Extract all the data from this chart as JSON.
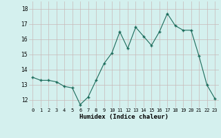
{
  "x": [
    0,
    1,
    2,
    3,
    4,
    5,
    6,
    7,
    8,
    9,
    10,
    11,
    12,
    13,
    14,
    15,
    16,
    17,
    18,
    19,
    20,
    21,
    22,
    23
  ],
  "y": [
    13.5,
    13.3,
    13.3,
    13.2,
    12.9,
    12.8,
    11.7,
    12.2,
    13.3,
    14.4,
    15.1,
    16.5,
    15.4,
    16.8,
    16.2,
    15.6,
    16.5,
    17.7,
    16.9,
    16.6,
    16.6,
    14.9,
    13.0,
    12.1
  ],
  "xlabel": "Humidex (Indice chaleur)",
  "line_color": "#1a6b5a",
  "marker": "+",
  "bg_color": "#d4f0ee",
  "grid_color": "#c8b8b8",
  "ylim": [
    11.5,
    18.5
  ],
  "xlim": [
    -0.5,
    23.5
  ],
  "yticks": [
    12,
    13,
    14,
    15,
    16,
    17,
    18
  ],
  "xticks": [
    0,
    1,
    2,
    3,
    4,
    5,
    6,
    7,
    8,
    9,
    10,
    11,
    12,
    13,
    14,
    15,
    16,
    17,
    18,
    19,
    20,
    21,
    22,
    23
  ]
}
